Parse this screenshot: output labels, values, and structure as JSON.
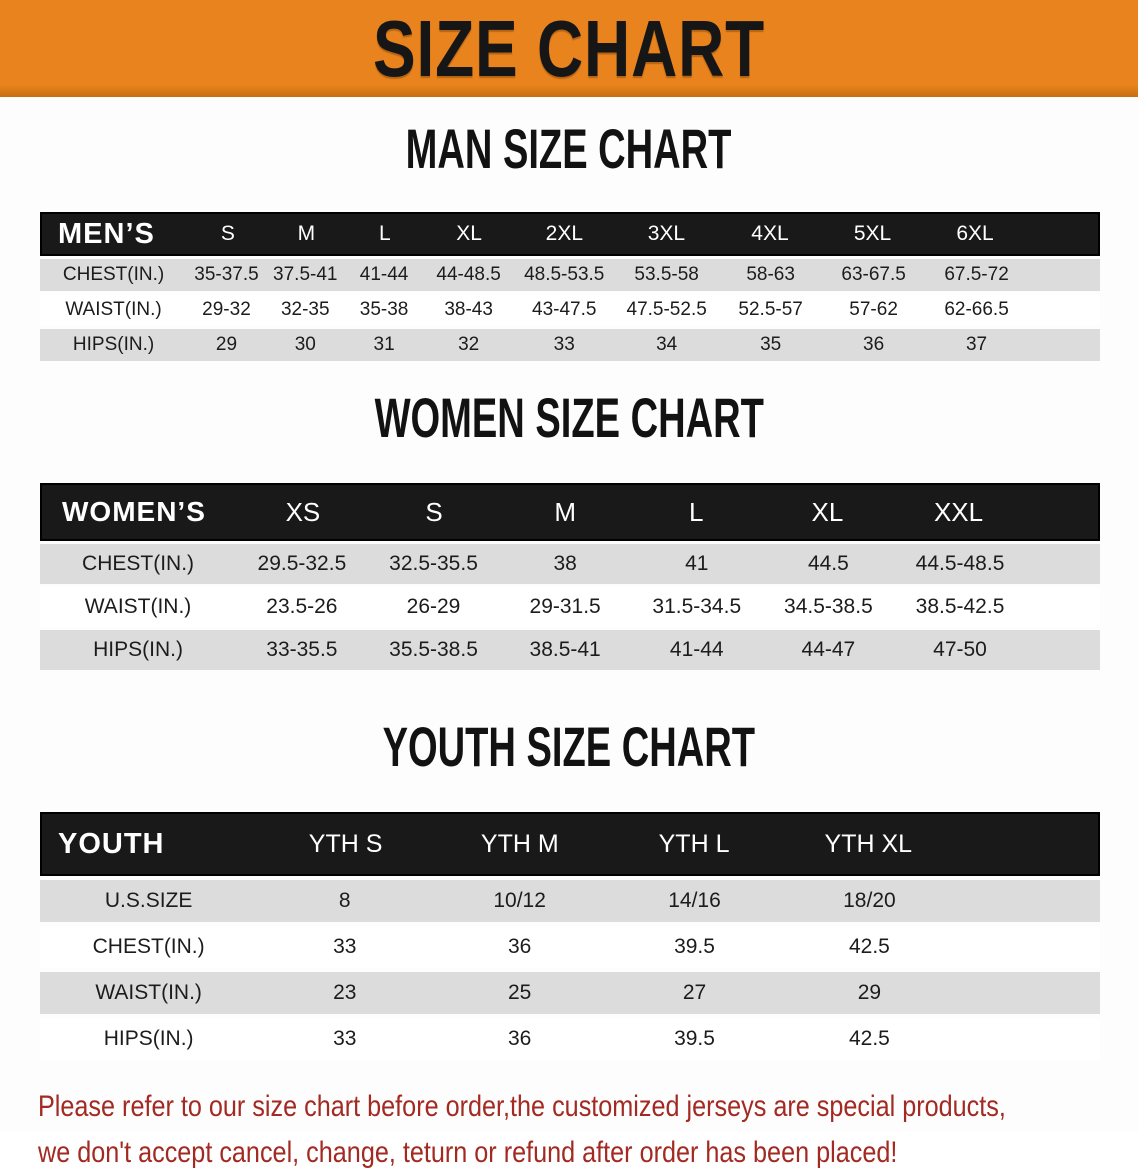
{
  "colors": {
    "banner_bg": "#E8831D",
    "banner_edge": "#C76E12",
    "header_bg": "#191919",
    "row_gray": "#DCDCDC",
    "footer_red": "#A32A22"
  },
  "banner": {
    "title": "SIZE CHART"
  },
  "men": {
    "heading": "MAN SIZE CHART",
    "label": "MEN’S",
    "sizes": [
      "S",
      "M",
      "L",
      "XL",
      "2XL",
      "3XL",
      "4XL",
      "5XL",
      "6XL"
    ],
    "rows": [
      {
        "label": "CHEST(IN.)",
        "values": [
          "35-37.5",
          "37.5-41",
          "41-44",
          "44-48.5",
          "48.5-53.5",
          "53.5-58",
          "58-63",
          "63-67.5",
          "67.5-72"
        ]
      },
      {
        "label": "WAIST(IN.)",
        "values": [
          "29-32",
          "32-35",
          "35-38",
          "38-43",
          "43-47.5",
          "47.5-52.5",
          "52.5-57",
          "57-62",
          "62-66.5"
        ]
      },
      {
        "label": "HIPS(IN.)",
        "values": [
          "29",
          "30",
          "31",
          "32",
          "33",
          "34",
          "35",
          "36",
          "37"
        ]
      }
    ]
  },
  "women": {
    "heading": "WOMEN SIZE CHART",
    "label": "WOMEN’S",
    "sizes": [
      "XS",
      "S",
      "M",
      "L",
      "XL",
      "XXL"
    ],
    "rows": [
      {
        "label": "CHEST(IN.)",
        "values": [
          "29.5-32.5",
          "32.5-35.5",
          "38",
          "41",
          "44.5",
          "44.5-48.5"
        ]
      },
      {
        "label": "WAIST(IN.)",
        "values": [
          "23.5-26",
          "26-29",
          "29-31.5",
          "31.5-34.5",
          "34.5-38.5",
          "38.5-42.5"
        ]
      },
      {
        "label": "HIPS(IN.)",
        "values": [
          "33-35.5",
          "35.5-38.5",
          "38.5-41",
          "41-44",
          "44-47",
          "47-50"
        ]
      }
    ]
  },
  "youth": {
    "heading": "YOUTH SIZE CHART",
    "label": "YOUTH",
    "sizes": [
      "YTH S",
      "YTH M",
      "YTH L",
      "YTH XL"
    ],
    "rows": [
      {
        "label": "U.S.SIZE",
        "values": [
          "8",
          "10/12",
          "14/16",
          "18/20"
        ]
      },
      {
        "label": "CHEST(IN.)",
        "values": [
          "33",
          "36",
          "39.5",
          "42.5"
        ]
      },
      {
        "label": "WAIST(IN.)",
        "values": [
          "23",
          "25",
          "27",
          "29"
        ]
      },
      {
        "label": "HIPS(IN.)",
        "values": [
          "33",
          "36",
          "39.5",
          "42.5"
        ]
      }
    ]
  },
  "footer": {
    "line1": "Please refer to our size chart before order,the customized jerseys are special products,",
    "line2": "we don't accept cancel, change, teturn or refund after order has been placed!"
  }
}
